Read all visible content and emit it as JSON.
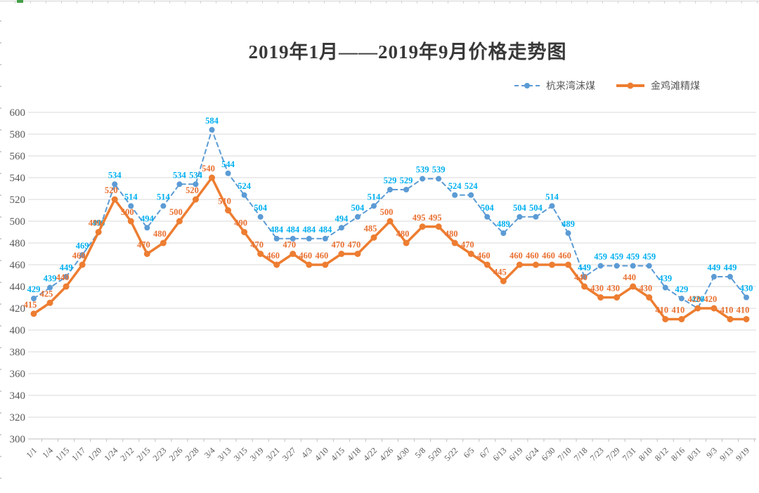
{
  "chart_data": {
    "type": "line",
    "title": "2019年1月——2019年9月价格走势图",
    "categories": [
      "1/1",
      "1/4",
      "1/15",
      "1/17",
      "1/20",
      "1/24",
      "2/12",
      "2/15",
      "2/23",
      "2/26",
      "2/28",
      "3/4",
      "3/13",
      "3/15",
      "3/19",
      "3/21",
      "3/27",
      "4/3",
      "4/10",
      "4/15",
      "4/18",
      "4/22",
      "4/26",
      "4/30",
      "5/8",
      "5/20",
      "5/22",
      "6/5",
      "6/7",
      "6/13",
      "6/19",
      "6/24",
      "6/30",
      "7/10",
      "7/18",
      "7/23",
      "7/29",
      "7/31",
      "8/10",
      "8/12",
      "8/16",
      "8/31",
      "9/3",
      "9/13",
      "9/19"
    ],
    "series": [
      {
        "name": "杭来湾沫煤",
        "style": "dashed",
        "color": "#5B9BD5",
        "label_color": "#00B0F0",
        "values": [
          429,
          439,
          449,
          469,
          490,
          534,
          514,
          494,
          514,
          534,
          534,
          584,
          544,
          524,
          504,
          484,
          484,
          484,
          484,
          494,
          504,
          514,
          529,
          529,
          539,
          539,
          524,
          524,
          504,
          489,
          504,
          504,
          514,
          489,
          449,
          459,
          459,
          459,
          459,
          439,
          429,
          420,
          449,
          449,
          430
        ]
      },
      {
        "name": "金鸡滩精煤",
        "style": "solid",
        "color": "#ED7D31",
        "label_color": "#E97132",
        "values": [
          415,
          425,
          440,
          460,
          490,
          520,
          500,
          470,
          480,
          500,
          520,
          540,
          510,
          490,
          470,
          460,
          470,
          460,
          460,
          470,
          470,
          485,
          500,
          480,
          495,
          495,
          480,
          470,
          460,
          445,
          460,
          460,
          460,
          460,
          440,
          430,
          430,
          440,
          430,
          410,
          410,
          420,
          420,
          410,
          410
        ]
      }
    ],
    "ylim": [
      300,
      600
    ],
    "ytick_step": 20,
    "yticks": [
      300,
      320,
      340,
      360,
      380,
      400,
      420,
      440,
      460,
      480,
      500,
      520,
      540,
      560,
      580,
      600
    ],
    "grid": true,
    "legend_position": "top-right",
    "data_labels": true
  },
  "colors": {
    "gridline": "#D9D9D9",
    "axis_line": "#BFBFBF",
    "axis_text": "#595959"
  }
}
